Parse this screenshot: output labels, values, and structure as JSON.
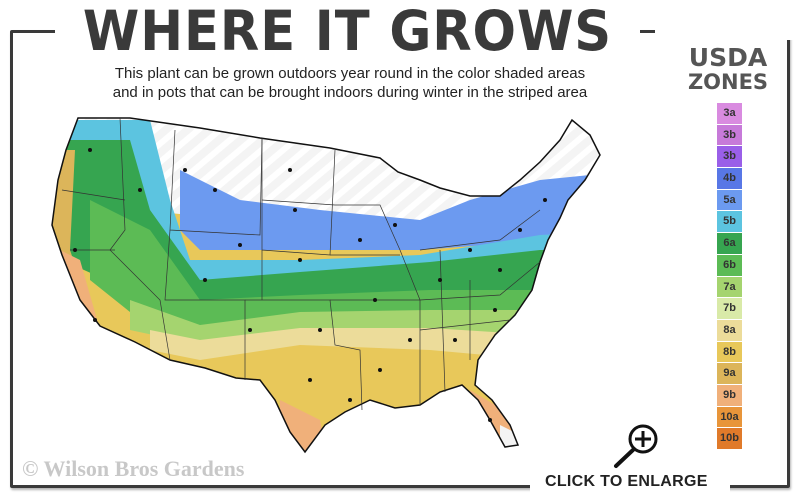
{
  "header": {
    "title": "WHERE IT GROWS",
    "subtitle_line1": "This plant can be grown outdoors year round in the color shaded areas",
    "subtitle_line2": "and in pots that can be brought indoors during winter in the striped area"
  },
  "legend": {
    "title_line1": "USDA",
    "title_line2": "ZONES",
    "zones": [
      {
        "label": "3a",
        "color": "#d98be0"
      },
      {
        "label": "3b",
        "color": "#c77ad9"
      },
      {
        "label": "3b",
        "color": "#9a5fe8"
      },
      {
        "label": "4b",
        "color": "#5877e6"
      },
      {
        "label": "5a",
        "color": "#6c9af0"
      },
      {
        "label": "5b",
        "color": "#5cc4e0"
      },
      {
        "label": "6a",
        "color": "#36a550"
      },
      {
        "label": "6b",
        "color": "#5cbb55"
      },
      {
        "label": "7a",
        "color": "#a5d46f"
      },
      {
        "label": "7b",
        "color": "#d9eaa8"
      },
      {
        "label": "8a",
        "color": "#ecdc9a"
      },
      {
        "label": "8b",
        "color": "#e8c85a"
      },
      {
        "label": "9a",
        "color": "#dcb55a"
      },
      {
        "label": "9b",
        "color": "#f0b07a"
      },
      {
        "label": "10a",
        "color": "#e8953a"
      },
      {
        "label": "10b",
        "color": "#e07a2a"
      }
    ]
  },
  "footer": {
    "copyright": "© Wilson Bros Gardens",
    "enlarge_label": "CLICK TO ENLARGE"
  },
  "icons": {
    "enlarge": "magnifier-plus-icon"
  }
}
